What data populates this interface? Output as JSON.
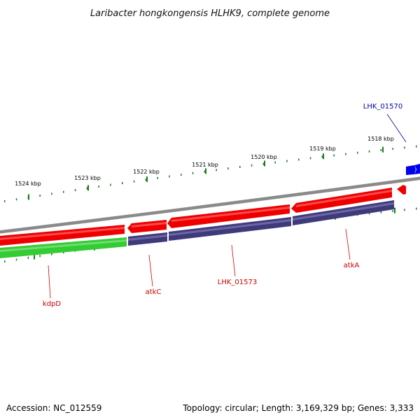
{
  "title": "Laribacter hongkongensis HLHK9, complete genome",
  "footer": {
    "accession": "Accession: NC_012559",
    "summary": "Topology: circular; Length: 3,169,329 bp; Genes: 3,333"
  },
  "kbp_labels": [
    "1524 kbp",
    "1523 kbp",
    "1522 kbp",
    "1521 kbp",
    "1520 kbp",
    "1519 kbp",
    "1518 kbp"
  ],
  "gene_labels": [
    {
      "text": "LHK_01570",
      "color": "#0000aa"
    },
    {
      "text": "kdpD",
      "color": "#cc0000"
    },
    {
      "text": "atkC",
      "color": "#cc0000"
    },
    {
      "text": "LHK_01573",
      "color": "#cc0000"
    },
    {
      "text": "atkA",
      "color": "#cc0000"
    }
  ],
  "colors": {
    "backbone": "#8a8a8a",
    "cds_forward": "#ee0000",
    "gene_dark": "#3f3a7a",
    "gene_green": "#33cc33",
    "gene_blue": "#0000ee",
    "tick": "#1a7a1a"
  }
}
